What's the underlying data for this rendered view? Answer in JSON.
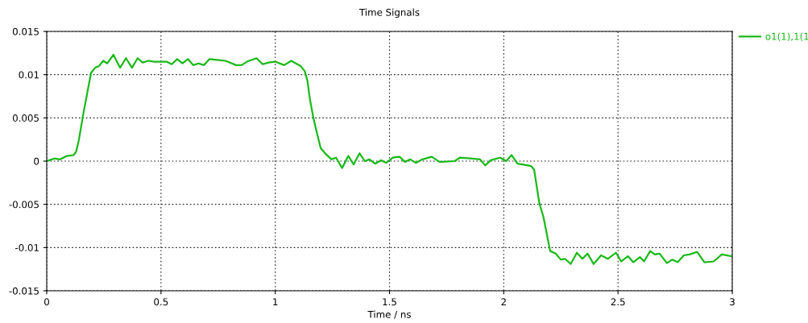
{
  "chart_data": {
    "type": "line",
    "title": "Time Signals",
    "xlabel": "Time / ns",
    "x": [
      0,
      0.035,
      0.059,
      0.088,
      0.118,
      0.129,
      0.141,
      0.159,
      0.176,
      0.194,
      0.212,
      0.229,
      0.247,
      0.265,
      0.292,
      0.321,
      0.347,
      0.373,
      0.398,
      0.42,
      0.444,
      0.471,
      0.5,
      0.524,
      0.547,
      0.571,
      0.594,
      0.618,
      0.641,
      0.665,
      0.688,
      0.712,
      0.747,
      0.782,
      0.829,
      0.853,
      0.876,
      0.918,
      0.945,
      0.971,
      1.0,
      1.039,
      1.07,
      1.111,
      1.129,
      1.141,
      1.152,
      1.167,
      1.181,
      1.199,
      1.222,
      1.246,
      1.266,
      1.293,
      1.32,
      1.343,
      1.369,
      1.392,
      1.412,
      1.437,
      1.463,
      1.486,
      1.515,
      1.544,
      1.568,
      1.591,
      1.615,
      1.644,
      1.685,
      1.72,
      1.785,
      1.808,
      1.861,
      1.896,
      1.919,
      1.943,
      1.984,
      2.011,
      2.034,
      2.06,
      2.107,
      2.121,
      2.133,
      2.156,
      2.174,
      2.203,
      2.227,
      2.25,
      2.268,
      2.293,
      2.32,
      2.344,
      2.367,
      2.393,
      2.426,
      2.455,
      2.491,
      2.514,
      2.543,
      2.567,
      2.596,
      2.614,
      2.641,
      2.661,
      2.682,
      2.714,
      2.737,
      2.761,
      2.788,
      2.813,
      2.846,
      2.878,
      2.919,
      2.954,
      2.995
    ],
    "series": [
      {
        "name": "o1(1),1(1",
        "color": "#19b919",
        "values": [
          0,
          0.0003,
          0.0002,
          0.0006,
          0.0007,
          0.0011,
          0.0025,
          0.0053,
          0.0077,
          0.0102,
          0.0108,
          0.011,
          0.0116,
          0.0113,
          0.0123,
          0.0108,
          0.0119,
          0.0108,
          0.0119,
          0.0114,
          0.0116,
          0.0115,
          0.0115,
          0.0115,
          0.0112,
          0.0118,
          0.0113,
          0.0118,
          0.0111,
          0.0113,
          0.0111,
          0.0118,
          0.0117,
          0.0116,
          0.0111,
          0.0111,
          0.0115,
          0.0119,
          0.0112,
          0.0114,
          0.0115,
          0.0111,
          0.0116,
          0.011,
          0.0104,
          0.0093,
          0.0071,
          0.005,
          0.0034,
          0.0015,
          0.0008,
          0.0002,
          0.0004,
          -0.0008,
          0.0006,
          -0.0004,
          0.0009,
          0,
          0.0002,
          -0.0003,
          0.0001,
          -0.0002,
          0.0004,
          0.0005,
          -0.0001,
          0.0002,
          -0.0002,
          0.0002,
          0.0005,
          -0.0001,
          0,
          0.0004,
          0.0003,
          0.0002,
          -0.0005,
          0.0001,
          0.0004,
          0,
          0.0007,
          -0.0003,
          -0.0005,
          -0.0006,
          -0.001,
          -0.0049,
          -0.0065,
          -0.0104,
          -0.0107,
          -0.0114,
          -0.0113,
          -0.0119,
          -0.0106,
          -0.0113,
          -0.0107,
          -0.0119,
          -0.0109,
          -0.0113,
          -0.0106,
          -0.0116,
          -0.011,
          -0.0117,
          -0.0111,
          -0.0116,
          -0.0104,
          -0.0108,
          -0.0107,
          -0.0118,
          -0.0114,
          -0.0117,
          -0.0109,
          -0.0108,
          -0.0105,
          -0.0117,
          -0.0116,
          -0.0108,
          -0.011
        ]
      }
    ],
    "xlim": [
      0,
      3
    ],
    "xticks": [
      0,
      0.5,
      1,
      1.5,
      2,
      2.5,
      3
    ],
    "ylim": [
      -0.015,
      0.015
    ],
    "yticks": [
      -0.015,
      -0.01,
      -0.005,
      0,
      0.005,
      0.01,
      0.015
    ],
    "grid": true,
    "legend": "top right",
    "line_style": "solid",
    "marker": "none"
  }
}
